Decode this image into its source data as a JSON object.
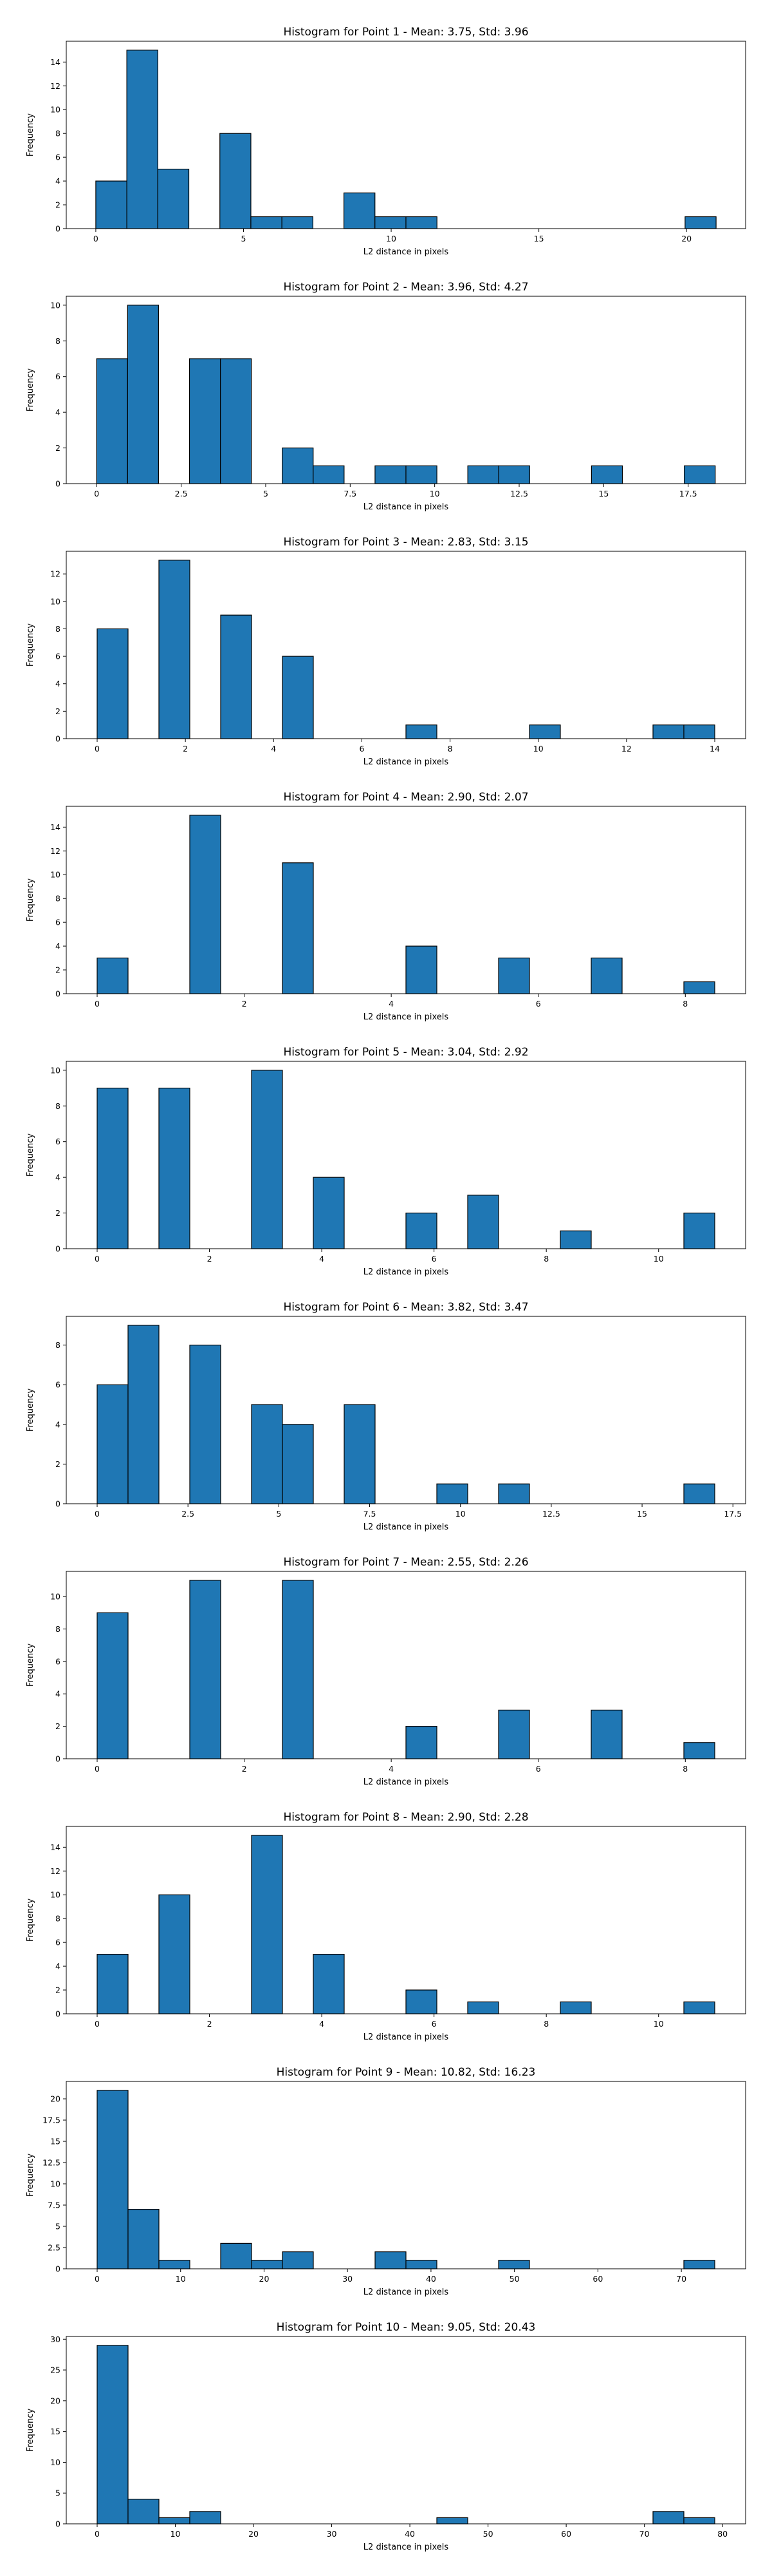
{
  "chart_data": [
    {
      "type": "bar",
      "title": "Histogram for Point 1 - Mean: 3.75, Std: 3.96",
      "xlabel": "L2 distance in pixels",
      "ylabel": "Frequency",
      "xlim": [
        -1.0,
        22.0
      ],
      "ylim": [
        0,
        15.75
      ],
      "xticks": [
        0,
        5,
        10,
        15,
        20
      ],
      "yticks": [
        0,
        2,
        4,
        6,
        8,
        10,
        12,
        14
      ],
      "bins": [
        {
          "x0": 0.0,
          "x1": 1.05,
          "count": 4
        },
        {
          "x0": 1.05,
          "x1": 2.1,
          "count": 15
        },
        {
          "x0": 2.1,
          "x1": 3.15,
          "count": 5
        },
        {
          "x0": 4.2,
          "x1": 5.25,
          "count": 8
        },
        {
          "x0": 5.25,
          "x1": 6.3,
          "count": 1
        },
        {
          "x0": 6.3,
          "x1": 7.35,
          "count": 1
        },
        {
          "x0": 8.4,
          "x1": 9.45,
          "count": 3
        },
        {
          "x0": 9.45,
          "x1": 10.5,
          "count": 1
        },
        {
          "x0": 10.5,
          "x1": 11.55,
          "count": 1
        },
        {
          "x0": 19.95,
          "x1": 21.0,
          "count": 1
        }
      ]
    },
    {
      "type": "bar",
      "title": "Histogram for Point 2 - Mean: 3.96, Std: 4.27",
      "xlabel": "L2 distance in pixels",
      "ylabel": "Frequency",
      "xlim": [
        -0.9,
        19.2
      ],
      "ylim": [
        0,
        10.5
      ],
      "xticks": [
        0.0,
        2.5,
        5.0,
        7.5,
        10.0,
        12.5,
        15.0,
        17.5
      ],
      "yticks": [
        0,
        2,
        4,
        6,
        8,
        10
      ],
      "bins": [
        {
          "x0": 0.0,
          "x1": 0.915,
          "count": 7
        },
        {
          "x0": 0.915,
          "x1": 1.83,
          "count": 10
        },
        {
          "x0": 2.745,
          "x1": 3.66,
          "count": 7
        },
        {
          "x0": 3.66,
          "x1": 4.575,
          "count": 7
        },
        {
          "x0": 5.49,
          "x1": 6.405,
          "count": 2
        },
        {
          "x0": 6.405,
          "x1": 7.32,
          "count": 1
        },
        {
          "x0": 8.235,
          "x1": 9.15,
          "count": 1
        },
        {
          "x0": 9.15,
          "x1": 10.065,
          "count": 1
        },
        {
          "x0": 10.98,
          "x1": 11.895,
          "count": 1
        },
        {
          "x0": 11.895,
          "x1": 12.81,
          "count": 1
        },
        {
          "x0": 14.64,
          "x1": 15.555,
          "count": 1
        },
        {
          "x0": 17.385,
          "x1": 18.3,
          "count": 1
        }
      ]
    },
    {
      "type": "bar",
      "title": "Histogram for Point 3 - Mean: 2.83, Std: 3.15",
      "xlabel": "L2 distance in pixels",
      "ylabel": "Frequency",
      "xlim": [
        -0.7,
        14.7
      ],
      "ylim": [
        0,
        13.65
      ],
      "xticks": [
        0,
        2,
        4,
        6,
        8,
        10,
        12,
        14
      ],
      "yticks": [
        0,
        2,
        4,
        6,
        8,
        10,
        12
      ],
      "bins": [
        {
          "x0": 0.0,
          "x1": 0.7,
          "count": 8
        },
        {
          "x0": 1.4,
          "x1": 2.1,
          "count": 13
        },
        {
          "x0": 2.8,
          "x1": 3.5,
          "count": 9
        },
        {
          "x0": 4.2,
          "x1": 4.9,
          "count": 6
        },
        {
          "x0": 7.0,
          "x1": 7.7,
          "count": 1
        },
        {
          "x0": 9.8,
          "x1": 10.5,
          "count": 1
        },
        {
          "x0": 12.6,
          "x1": 13.3,
          "count": 1
        },
        {
          "x0": 13.3,
          "x1": 14.0,
          "count": 1
        }
      ]
    },
    {
      "type": "bar",
      "title": "Histogram for Point 4 - Mean: 2.90, Std: 2.07",
      "xlabel": "L2 distance in pixels",
      "ylabel": "Frequency",
      "xlim": [
        -0.42,
        8.82
      ],
      "ylim": [
        0,
        15.75
      ],
      "xticks": [
        0,
        2,
        4,
        6,
        8
      ],
      "yticks": [
        0,
        2,
        4,
        6,
        8,
        10,
        12,
        14
      ],
      "bins": [
        {
          "x0": 0.0,
          "x1": 0.42,
          "count": 3
        },
        {
          "x0": 1.26,
          "x1": 1.68,
          "count": 15
        },
        {
          "x0": 2.52,
          "x1": 2.94,
          "count": 11
        },
        {
          "x0": 4.2,
          "x1": 4.62,
          "count": 4
        },
        {
          "x0": 5.46,
          "x1": 5.88,
          "count": 3
        },
        {
          "x0": 6.72,
          "x1": 7.14,
          "count": 3
        },
        {
          "x0": 7.98,
          "x1": 8.4,
          "count": 1
        }
      ]
    },
    {
      "type": "bar",
      "title": "Histogram for Point 5 - Mean: 3.04, Std: 2.92",
      "xlabel": "L2 distance in pixels",
      "ylabel": "Frequency",
      "xlim": [
        -0.55,
        11.55
      ],
      "ylim": [
        0,
        10.5
      ],
      "xticks": [
        0,
        2,
        4,
        6,
        8,
        10
      ],
      "yticks": [
        0,
        2,
        4,
        6,
        8,
        10
      ],
      "bins": [
        {
          "x0": 0.0,
          "x1": 0.55,
          "count": 9
        },
        {
          "x0": 1.1,
          "x1": 1.65,
          "count": 9
        },
        {
          "x0": 2.75,
          "x1": 3.3,
          "count": 10
        },
        {
          "x0": 3.85,
          "x1": 4.4,
          "count": 4
        },
        {
          "x0": 5.5,
          "x1": 6.05,
          "count": 2
        },
        {
          "x0": 6.6,
          "x1": 7.15,
          "count": 3
        },
        {
          "x0": 8.25,
          "x1": 8.8,
          "count": 1
        },
        {
          "x0": 10.45,
          "x1": 11.0,
          "count": 2
        }
      ]
    },
    {
      "type": "bar",
      "title": "Histogram for Point 6 - Mean: 3.82, Std: 3.47",
      "xlabel": "L2 distance in pixels",
      "ylabel": "Frequency",
      "xlim": [
        -0.85,
        17.85
      ],
      "ylim": [
        0,
        9.45
      ],
      "xticks": [
        0.0,
        2.5,
        5.0,
        7.5,
        10.0,
        12.5,
        15.0,
        17.5
      ],
      "yticks": [
        0,
        2,
        4,
        6,
        8
      ],
      "bins": [
        {
          "x0": 0.0,
          "x1": 0.85,
          "count": 6
        },
        {
          "x0": 0.85,
          "x1": 1.7,
          "count": 9
        },
        {
          "x0": 2.55,
          "x1": 3.4,
          "count": 8
        },
        {
          "x0": 4.25,
          "x1": 5.1,
          "count": 5
        },
        {
          "x0": 5.1,
          "x1": 5.95,
          "count": 4
        },
        {
          "x0": 6.8,
          "x1": 7.65,
          "count": 5
        },
        {
          "x0": 9.35,
          "x1": 10.2,
          "count": 1
        },
        {
          "x0": 11.05,
          "x1": 11.9,
          "count": 1
        },
        {
          "x0": 16.15,
          "x1": 17.0,
          "count": 1
        }
      ]
    },
    {
      "type": "bar",
      "title": "Histogram for Point 7 - Mean: 2.55, Std: 2.26",
      "xlabel": "L2 distance in pixels",
      "ylabel": "Frequency",
      "xlim": [
        -0.42,
        8.82
      ],
      "ylim": [
        0,
        11.55
      ],
      "xticks": [
        0,
        2,
        4,
        6,
        8
      ],
      "yticks": [
        0,
        2,
        4,
        6,
        8,
        10
      ],
      "bins": [
        {
          "x0": 0.0,
          "x1": 0.42,
          "count": 9
        },
        {
          "x0": 1.26,
          "x1": 1.68,
          "count": 11
        },
        {
          "x0": 2.52,
          "x1": 2.94,
          "count": 11
        },
        {
          "x0": 4.2,
          "x1": 4.62,
          "count": 2
        },
        {
          "x0": 5.46,
          "x1": 5.88,
          "count": 3
        },
        {
          "x0": 6.72,
          "x1": 7.14,
          "count": 3
        },
        {
          "x0": 7.98,
          "x1": 8.4,
          "count": 1
        }
      ]
    },
    {
      "type": "bar",
      "title": "Histogram for Point 8 - Mean: 2.90, Std: 2.28",
      "xlabel": "L2 distance in pixels",
      "ylabel": "Frequency",
      "xlim": [
        -0.55,
        11.55
      ],
      "ylim": [
        0,
        15.75
      ],
      "xticks": [
        0,
        2,
        4,
        6,
        8,
        10
      ],
      "yticks": [
        0,
        2,
        4,
        6,
        8,
        10,
        12,
        14
      ],
      "bins": [
        {
          "x0": 0.0,
          "x1": 0.55,
          "count": 5
        },
        {
          "x0": 1.1,
          "x1": 1.65,
          "count": 10
        },
        {
          "x0": 2.75,
          "x1": 3.3,
          "count": 15
        },
        {
          "x0": 3.85,
          "x1": 4.4,
          "count": 5
        },
        {
          "x0": 5.5,
          "x1": 6.05,
          "count": 2
        },
        {
          "x0": 6.6,
          "x1": 7.15,
          "count": 1
        },
        {
          "x0": 8.25,
          "x1": 8.8,
          "count": 1
        },
        {
          "x0": 10.45,
          "x1": 11.0,
          "count": 1
        }
      ]
    },
    {
      "type": "bar",
      "title": "Histogram for Point 9 - Mean: 10.82, Std: 16.23",
      "xlabel": "L2 distance in pixels",
      "ylabel": "Frequency",
      "xlim": [
        -3.7,
        77.7
      ],
      "ylim": [
        0,
        22.05
      ],
      "xticks": [
        0,
        10,
        20,
        30,
        40,
        50,
        60,
        70
      ],
      "yticks": [
        0.0,
        2.5,
        5.0,
        7.5,
        10.0,
        12.5,
        15.0,
        17.5,
        20.0
      ],
      "bins": [
        {
          "x0": 0.0,
          "x1": 3.7,
          "count": 21
        },
        {
          "x0": 3.7,
          "x1": 7.4,
          "count": 7
        },
        {
          "x0": 7.4,
          "x1": 11.1,
          "count": 1
        },
        {
          "x0": 14.8,
          "x1": 18.5,
          "count": 3
        },
        {
          "x0": 18.5,
          "x1": 22.2,
          "count": 1
        },
        {
          "x0": 22.2,
          "x1": 25.9,
          "count": 2
        },
        {
          "x0": 33.3,
          "x1": 37.0,
          "count": 2
        },
        {
          "x0": 37.0,
          "x1": 40.7,
          "count": 1
        },
        {
          "x0": 48.1,
          "x1": 51.8,
          "count": 1
        },
        {
          "x0": 70.3,
          "x1": 74.0,
          "count": 1
        }
      ]
    },
    {
      "type": "bar",
      "title": "Histogram for Point 10 - Mean: 9.05, Std: 20.43",
      "xlabel": "L2 distance in pixels",
      "ylabel": "Frequency",
      "xlim": [
        -3.95,
        82.95
      ],
      "ylim": [
        0,
        30.45
      ],
      "xticks": [
        0,
        10,
        20,
        30,
        40,
        50,
        60,
        70,
        80
      ],
      "yticks": [
        0,
        5,
        10,
        15,
        20,
        25,
        30
      ],
      "bins": [
        {
          "x0": 0.0,
          "x1": 3.95,
          "count": 29
        },
        {
          "x0": 3.95,
          "x1": 7.9,
          "count": 4
        },
        {
          "x0": 7.9,
          "x1": 11.85,
          "count": 1
        },
        {
          "x0": 11.85,
          "x1": 15.8,
          "count": 2
        },
        {
          "x0": 43.45,
          "x1": 47.4,
          "count": 1
        },
        {
          "x0": 71.1,
          "x1": 75.05,
          "count": 2
        },
        {
          "x0": 75.05,
          "x1": 79.0,
          "count": 1
        }
      ]
    }
  ],
  "colors": {
    "bar_fill": "#1f77b4",
    "bar_edge": "#000000",
    "axis": "#000000",
    "background": "#ffffff"
  }
}
